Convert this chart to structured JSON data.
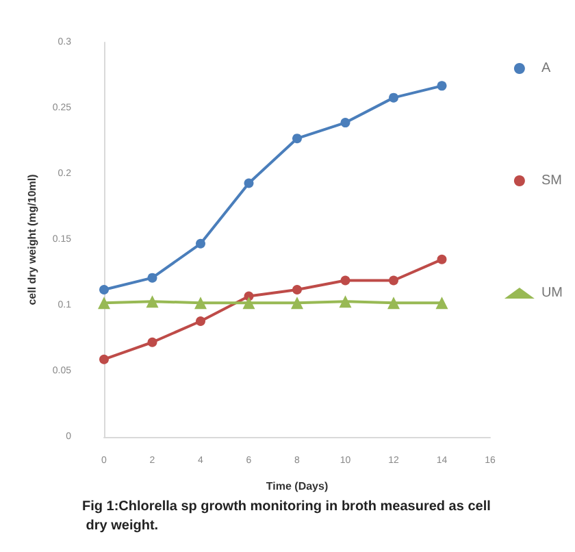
{
  "chart_data": {
    "type": "line",
    "xlabel": "Time (Days)",
    "ylabel": "cell dry weight (mg/10ml)",
    "annotations": [
      "Fig 1:Chlorella sp growth monitoring in broth measured as cell dry weight."
    ],
    "x": [
      0,
      2,
      4,
      6,
      8,
      10,
      12,
      14
    ],
    "series": [
      {
        "name": "A",
        "color": "#4a7ebb",
        "marker": "circle",
        "values": [
          0.112,
          0.121,
          0.147,
          0.193,
          0.227,
          0.239,
          0.258,
          0.267
        ]
      },
      {
        "name": "SM",
        "color": "#be4b48",
        "marker": "circle",
        "values": [
          0.059,
          0.072,
          0.088,
          0.107,
          0.112,
          0.119,
          0.119,
          0.135
        ]
      },
      {
        "name": "UM",
        "color": "#98b954",
        "marker": "triangle",
        "values": [
          0.102,
          0.103,
          0.102,
          0.102,
          0.102,
          0.103,
          0.102,
          0.102
        ]
      }
    ],
    "xlim": [
      0,
      16
    ],
    "xticks": [
      0,
      2,
      4,
      6,
      8,
      10,
      12,
      14,
      16
    ],
    "ylim": [
      0,
      0.3
    ],
    "yticks": [
      0,
      0.05,
      0.1,
      0.15,
      0.2,
      0.25,
      0.3
    ],
    "grid": false,
    "legend": "right",
    "line_style": "solid"
  }
}
